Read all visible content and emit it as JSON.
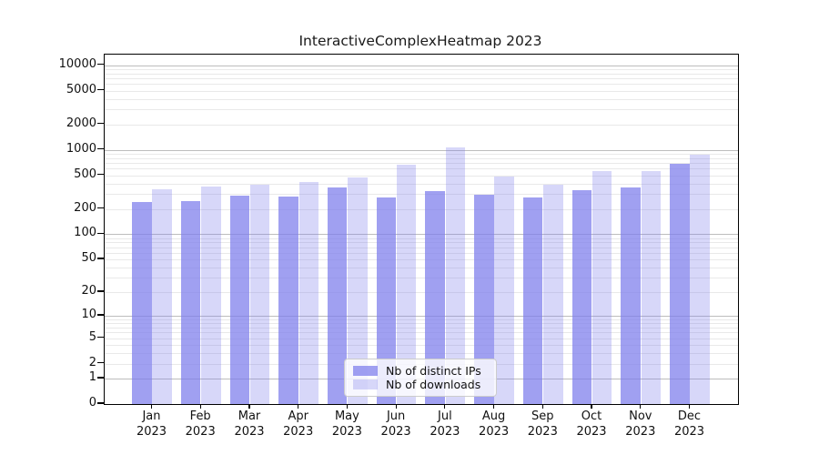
{
  "title": "InteractiveComplexHeatmap 2023",
  "colors": {
    "bar_base": "#7b7beb",
    "bar_primary_alpha": 0.72,
    "bar_secondary_alpha": 0.3,
    "grid_major": "#bdbdbd",
    "grid_minor": "#e9e9e9",
    "axis": "#000000"
  },
  "legend": {
    "position": "inside-bottom-center"
  },
  "chart_data": {
    "type": "bar",
    "title": "InteractiveComplexHeatmap 2023",
    "categories": [
      "Jan",
      "Feb",
      "Mar",
      "Apr",
      "May",
      "Jun",
      "Jul",
      "Aug",
      "Sep",
      "Oct",
      "Nov",
      "Dec"
    ],
    "category_year": "2023",
    "series": [
      {
        "name": "Nb of distinct IPs",
        "values": [
          240,
          245,
          285,
          277,
          358,
          273,
          328,
          297,
          272,
          330,
          357,
          685
        ]
      },
      {
        "name": "Nb of downloads",
        "values": [
          340,
          364,
          390,
          418,
          468,
          666,
          1060,
          488,
          391,
          565,
          560,
          876
        ]
      }
    ],
    "xlabel": "",
    "ylabel": "",
    "yscale": "log1p",
    "ylim": [
      0,
      13300
    ],
    "yticks": [
      0,
      1,
      2,
      5,
      10,
      20,
      50,
      100,
      200,
      500,
      1000,
      2000,
      5000,
      10000
    ],
    "grid": {
      "orientation": "horizontal",
      "major": [
        1,
        10,
        100,
        1000,
        10000
      ],
      "minor_pattern": [
        2,
        3,
        4,
        5,
        6,
        7,
        8,
        9
      ]
    },
    "legend_position": "inside-bottom-center"
  }
}
